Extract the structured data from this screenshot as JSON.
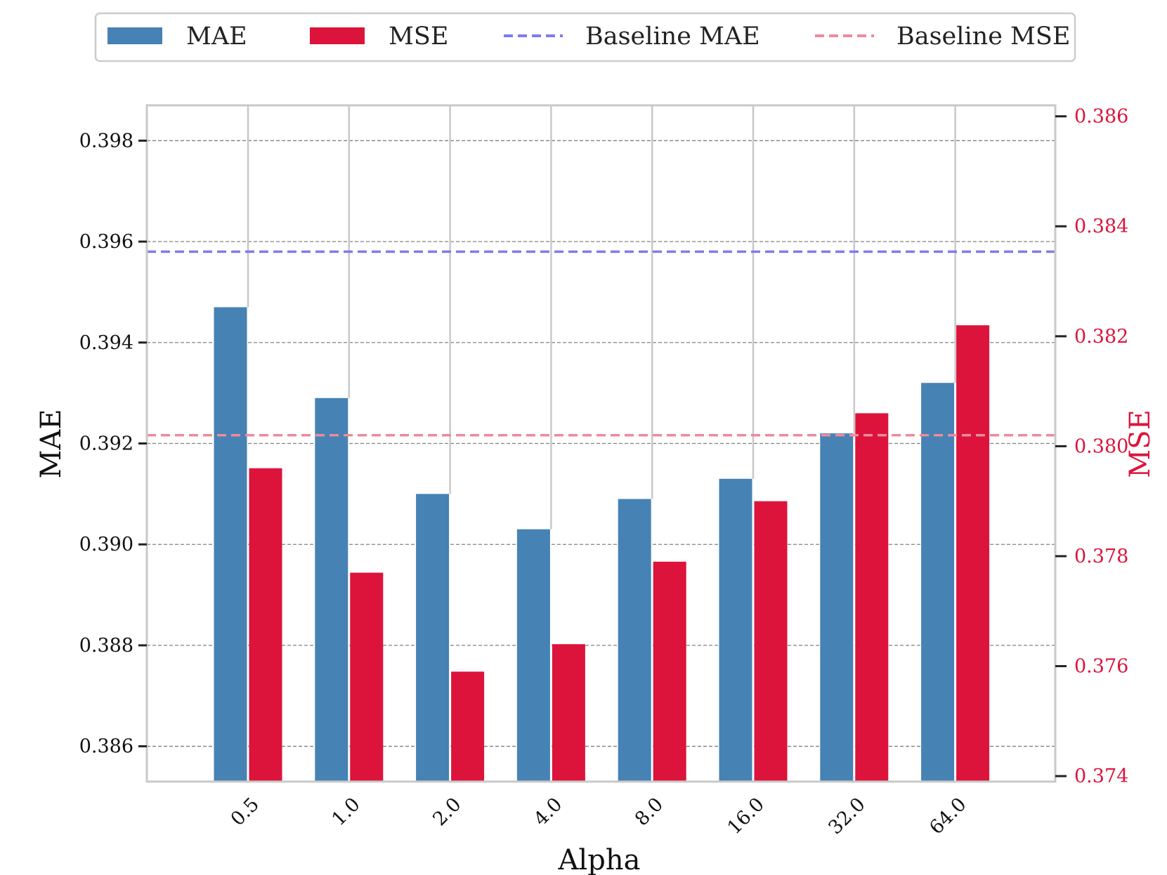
{
  "chart_data": {
    "type": "bar",
    "xlabel": "Alpha",
    "ylabel_left": "MAE",
    "ylabel_right": "MSE",
    "categories": [
      "0.5",
      "1.0",
      "2.0",
      "4.0",
      "8.0",
      "16.0",
      "32.0",
      "64.0"
    ],
    "series": [
      {
        "name": "MAE",
        "axis": "left",
        "color": "#4682b4",
        "values": [
          0.3947,
          0.3929,
          0.391,
          0.3903,
          0.3909,
          0.3913,
          0.3922,
          0.3932
        ]
      },
      {
        "name": "MSE",
        "axis": "right",
        "color": "#dc143c",
        "values": [
          0.3796,
          0.3777,
          0.3759,
          0.3764,
          0.3779,
          0.379,
          0.3806,
          0.3822
        ]
      }
    ],
    "baselines": [
      {
        "name": "Baseline MAE",
        "axis": "left",
        "value": 0.3958,
        "color": "#7b7bf5"
      },
      {
        "name": "Baseline MSE",
        "axis": "right",
        "value": 0.3802,
        "color": "#ee8a9c"
      }
    ],
    "left_axis": {
      "ylim": [
        0.3853,
        0.3987
      ],
      "ticks": [
        0.386,
        0.388,
        0.39,
        0.392,
        0.394,
        0.396,
        0.398
      ],
      "tick_labels": [
        "0.386",
        "0.388",
        "0.390",
        "0.392",
        "0.394",
        "0.396",
        "0.398"
      ]
    },
    "right_axis": {
      "ylim": [
        0.3739,
        0.3862
      ],
      "ticks": [
        0.374,
        0.376,
        0.378,
        0.38,
        0.382,
        0.384,
        0.386
      ],
      "tick_labels": [
        "0.374",
        "0.376",
        "0.378",
        "0.380",
        "0.382",
        "0.384",
        "0.386"
      ],
      "color": "#dc143c"
    },
    "legend": {
      "placement": "top-center",
      "entries": [
        {
          "label": "MAE",
          "kind": "patch",
          "color": "#4682b4"
        },
        {
          "label": "MSE",
          "kind": "patch",
          "color": "#dc143c"
        },
        {
          "label": "Baseline MAE",
          "kind": "dashed",
          "color": "#7b7bf5"
        },
        {
          "label": "Baseline MSE",
          "kind": "dashed",
          "color": "#ee8a9c"
        }
      ]
    },
    "grid": true
  }
}
